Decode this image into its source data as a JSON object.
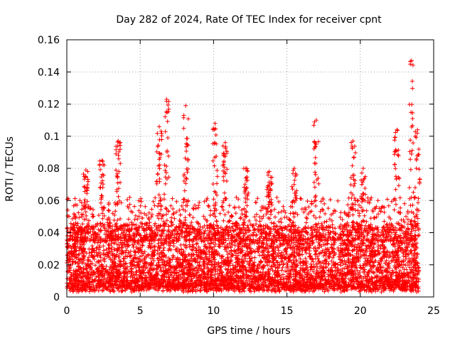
{
  "chart_data": {
    "type": "scatter",
    "title": "Day 282 of 2024, Rate Of TEC Index for receiver cpnt",
    "xlabel": "GPS time / hours",
    "ylabel": "ROTI / TECUs",
    "xlim": [
      0,
      25
    ],
    "ylim": [
      0,
      0.16
    ],
    "xticks": [
      0,
      5,
      10,
      15,
      20,
      25
    ],
    "yticks": [
      0,
      0.02,
      0.04,
      0.06,
      0.08,
      0.1,
      0.12,
      0.14,
      0.16
    ],
    "xtick_labels": [
      "0",
      "5",
      "10",
      "15",
      "20",
      "25"
    ],
    "ytick_labels": [
      "0",
      "0.02",
      "0.04",
      "0.06",
      "0.08",
      "0.1",
      "0.12",
      "0.14",
      "0.16"
    ],
    "grid": true,
    "marker": "+",
    "series": [
      {
        "name": "ROTI",
        "color": "#ff0000",
        "description_envelope": {
          "baseline_range": [
            0.005,
            0.045
          ],
          "x_span_hours": [
            0,
            24
          ],
          "peaks": [
            {
              "x": 1.3,
              "y": 0.079
            },
            {
              "x": 2.4,
              "y": 0.085
            },
            {
              "x": 3.5,
              "y": 0.097
            },
            {
              "x": 6.3,
              "y": 0.106
            },
            {
              "x": 6.8,
              "y": 0.123
            },
            {
              "x": 8.1,
              "y": 0.119
            },
            {
              "x": 10.1,
              "y": 0.108
            },
            {
              "x": 10.8,
              "y": 0.096
            },
            {
              "x": 12.2,
              "y": 0.08
            },
            {
              "x": 13.8,
              "y": 0.078
            },
            {
              "x": 15.5,
              "y": 0.08
            },
            {
              "x": 17.0,
              "y": 0.11
            },
            {
              "x": 19.5,
              "y": 0.097
            },
            {
              "x": 20.2,
              "y": 0.08
            },
            {
              "x": 22.5,
              "y": 0.104
            },
            {
              "x": 23.5,
              "y": 0.147
            },
            {
              "x": 23.9,
              "y": 0.104
            }
          ]
        }
      }
    ]
  }
}
